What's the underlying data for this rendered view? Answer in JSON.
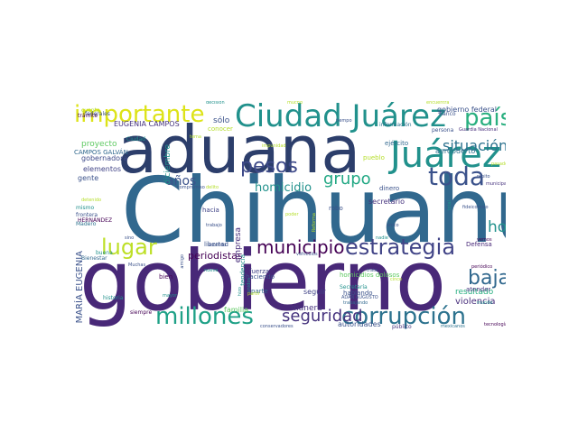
{
  "palette": {
    "deep_purple": "#440154",
    "indigo": "#3b528b",
    "teal": "#21918c",
    "green": "#5ec962",
    "yellow": "#fde725",
    "navy": "#31688e",
    "lime": "#c8e020",
    "blue_gray": "#2c728e",
    "purple": "#472d7b",
    "sea": "#28ae80"
  },
  "words": [
    {
      "text": "Chihuahua",
      "color": "#31688e"
    },
    {
      "text": "gobierno",
      "color": "#482878"
    },
    {
      "text": "aduana",
      "color": "#2c3e6b"
    },
    {
      "text": "Ciudad Juárez",
      "color": "#21918c"
    },
    {
      "text": "Juárez",
      "color": "#21918c"
    },
    {
      "text": "país",
      "color": "#29af7f"
    },
    {
      "text": "importante",
      "color": "#dde318"
    },
    {
      "text": "millones",
      "color": "#1fa187"
    },
    {
      "text": "corrupción",
      "color": "#2c728e"
    },
    {
      "text": "estrategia",
      "color": "#414487"
    },
    {
      "text": "toda",
      "color": "#3b528b"
    },
    {
      "text": "baja",
      "color": "#31688e"
    },
    {
      "text": "municipio",
      "color": "#440154"
    },
    {
      "text": "pesos",
      "color": "#3e4a89"
    },
    {
      "text": "seguridad",
      "color": "#46337e"
    },
    {
      "text": "lugar",
      "color": "#bddf26"
    },
    {
      "text": "situación",
      "color": "#2c728e"
    },
    {
      "text": "grupo",
      "color": "#22a884"
    },
    {
      "text": "hoy",
      "color": "#21918c"
    },
    {
      "text": "años",
      "color": "#3b528b"
    },
    {
      "text": "homicidio",
      "color": "#21918c"
    },
    {
      "text": "EUGENIA CAMPOS",
      "color": "#46337e"
    },
    {
      "text": "gobierno federal",
      "color": "#3b528b"
    },
    {
      "text": "MARÍA EUGENIA",
      "color": "#3b528b"
    },
    {
      "text": "CAMPOS GALVÁN",
      "color": "#31688e"
    },
    {
      "text": "periodistas",
      "color": "#440154"
    },
    {
      "text": "empresa",
      "color": "#472d7b"
    },
    {
      "text": "diciembre",
      "color": "#21918c"
    },
    {
      "text": "aeropuerto",
      "color": "#2c728e"
    },
    {
      "text": "violencia",
      "color": "#472d7b"
    },
    {
      "text": "resultado",
      "color": "#28ae80"
    },
    {
      "text": "autoridades",
      "color": "#3b528b"
    },
    {
      "text": "secretario",
      "color": "#46337e"
    },
    {
      "text": "ejército",
      "color": "#31688e"
    },
    {
      "text": "pueblo",
      "color": "#b5de2b"
    },
    {
      "text": "proyecto",
      "color": "#5ec962"
    },
    {
      "text": "gobernadora",
      "color": "#3e4a89"
    },
    {
      "text": "elementos",
      "color": "#414487"
    },
    {
      "text": "gente",
      "color": "#3b528b"
    },
    {
      "text": "mismo",
      "color": "#21918c"
    },
    {
      "text": "frontera",
      "color": "#3b528b"
    },
    {
      "text": "Madero",
      "color": "#2c728e"
    },
    {
      "text": "HERNÁNDEZ",
      "color": "#440154"
    },
    {
      "text": "Bienestar",
      "color": "#31688e"
    },
    {
      "text": "libertad",
      "color": "#3b528b"
    },
    {
      "text": "bien",
      "color": "#440154"
    },
    {
      "text": "tendencia",
      "color": "#21918c"
    },
    {
      "text": "haciendo",
      "color": "#3b528b"
    },
    {
      "text": "fuerza",
      "color": "#414487"
    },
    {
      "text": "manera",
      "color": "#46337e"
    },
    {
      "text": "familia",
      "color": "#5ec962"
    },
    {
      "text": "parte",
      "color": "#31688e"
    },
    {
      "text": "seguir",
      "color": "#414487"
    },
    {
      "text": "hablando",
      "color": "#3b528b"
    },
    {
      "text": "homicidios dolosos",
      "color": "#5ec962"
    },
    {
      "text": "ADÁN AUGUSTO",
      "color": "#3b528b"
    },
    {
      "text": "Defensa",
      "color": "#482878"
    },
    {
      "text": "atender",
      "color": "#46337e"
    },
    {
      "text": "mundo",
      "color": "#21918c"
    },
    {
      "text": "público",
      "color": "#46337e"
    },
    {
      "text": "siempre",
      "color": "#440154"
    },
    {
      "text": "conservadores",
      "color": "#3b528b"
    },
    {
      "text": "mexicanos",
      "color": "#2c728e"
    },
    {
      "text": "tecnología",
      "color": "#440154"
    },
    {
      "text": "dinero",
      "color": "#3b528b"
    },
    {
      "text": "Secretaría",
      "color": "#21918c"
    },
    {
      "text": "trabajando",
      "color": "#31688e"
    },
    {
      "text": "robo",
      "color": "#3b528b"
    },
    {
      "text": "Reforma",
      "color": "#b5de2b"
    },
    {
      "text": "único",
      "color": "#3b528b"
    },
    {
      "text": "hacia",
      "color": "#414487"
    },
    {
      "text": "sólo",
      "color": "#3b528b"
    },
    {
      "text": "decisión",
      "color": "#21918c"
    },
    {
      "text": "conocer",
      "color": "#b5de2b"
    },
    {
      "text": "impunidad",
      "color": "#b5de2b"
    },
    {
      "text": "Banco",
      "color": "#3b528b"
    },
    {
      "text": "Guardia Nacional",
      "color": "#472d7b"
    },
    {
      "text": "persona",
      "color": "#3b528b"
    },
    {
      "text": "información",
      "color": "#2c728e"
    },
    {
      "text": "Ciudad",
      "color": "#21918c"
    },
    {
      "text": "cuenta",
      "color": "#b5de2b"
    },
    {
      "text": "federales",
      "color": "#3b528b"
    },
    {
      "text": "trámite",
      "color": "#440154"
    },
    {
      "text": "compromiso",
      "color": "#3b528b"
    },
    {
      "text": "repito",
      "color": "#3b528b"
    },
    {
      "text": "municipal",
      "color": "#46337e"
    },
    {
      "text": "fideicomiso",
      "color": "#3b528b"
    },
    {
      "text": "total",
      "color": "#21918c"
    },
    {
      "text": "vemos",
      "color": "#440154"
    },
    {
      "text": "periódico",
      "color": "#440154"
    },
    {
      "text": "trata",
      "color": "#3b528b"
    },
    {
      "text": "cinco",
      "color": "#b5de2b"
    },
    {
      "text": "nadie",
      "color": "#21918c"
    },
    {
      "text": "poder",
      "color": "#b5de2b"
    },
    {
      "text": "trabajo",
      "color": "#3b528b"
    },
    {
      "text": "vehículos",
      "color": "#3b528b"
    },
    {
      "text": "acuerdo",
      "color": "#3b528b"
    },
    {
      "text": "hizo",
      "color": "#21918c"
    },
    {
      "text": "unidos",
      "color": "#21918c"
    },
    {
      "text": "sino",
      "color": "#3b528b"
    },
    {
      "text": "Muchas",
      "color": "#3b528b"
    },
    {
      "text": "historia",
      "color": "#21918c"
    },
    {
      "text": "detenido",
      "color": "#b5de2b"
    },
    {
      "text": "tiempo",
      "color": "#3b528b"
    },
    {
      "text": "nueva",
      "color": "#21918c"
    },
    {
      "text": "encuentra",
      "color": "#b5de2b"
    },
    {
      "text": "pasado",
      "color": "#b5de2b"
    },
    {
      "text": "mayor",
      "color": "#21918c"
    },
    {
      "text": "tema",
      "color": "#b5de2b"
    },
    {
      "text": "delito",
      "color": "#b5de2b"
    },
    {
      "text": "mucho",
      "color": "#b5de2b"
    },
    {
      "text": "buena",
      "color": "#21918c"
    },
    {
      "text": "partir",
      "color": "#b5de2b"
    },
    {
      "text": "amigo",
      "color": "#3b528b"
    }
  ]
}
